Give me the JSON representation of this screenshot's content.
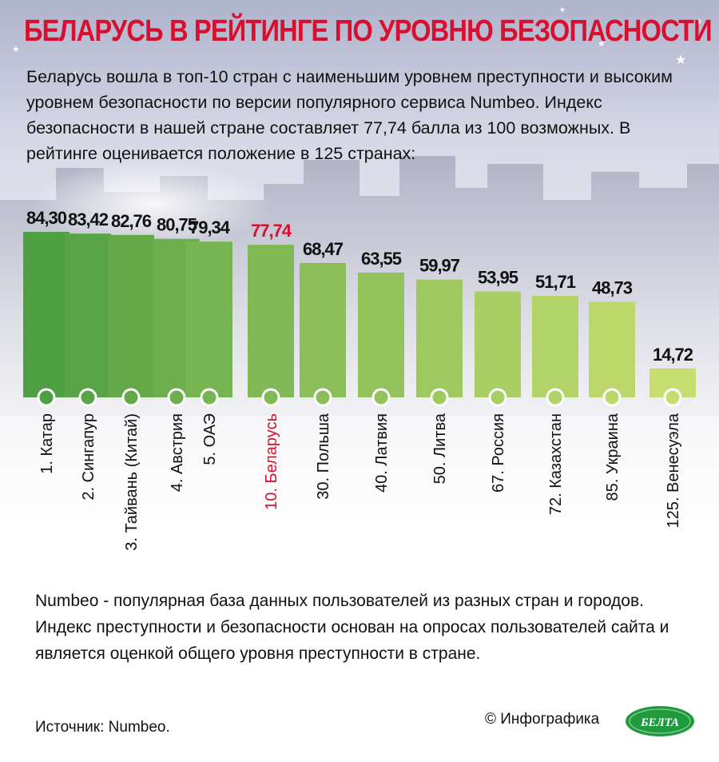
{
  "title": "БЕЛАРУСЬ В РЕЙТИНГЕ ПО УРОВНЮ БЕЗОПАСНОСТИ",
  "intro": "Беларусь вошла в топ-10 стран с наименьшим уровнем преступности и высоким уровнем безопасности по версии популярного сервиса Numbeo. Индекс безопасности в нашей стране составляет 77,74 балла из 100 возможных. В рейтинге оценивается положение в 125 странах:",
  "footnote": "Numbeo - популярная база данных пользователей из разных стран и городов. Индекс преступности и безопасности основан на опросах пользователей сайта и является оценкой общего уровня преступности в стране.",
  "source": "Источник: Numbeo.",
  "credit": "© Инфографика",
  "logo_text": "БЕЛТА",
  "colors": {
    "title": "#d8102f",
    "highlight": "#d8102f",
    "bar_dark": "#4f9f43",
    "bar_light": "#c6dd6f"
  },
  "chart_data": {
    "type": "bar",
    "ylim": [
      0,
      100
    ],
    "categories": [
      "1. Катар",
      "2. Сингапур",
      "3. Тайвань (Китай)",
      "4. Австрия",
      "5. ОАЭ",
      "10. Беларусь",
      "30. Польша",
      "40. Латвия",
      "50. Литва",
      "67. Россия",
      "72. Казахстан",
      "85. Украина",
      "125. Венесуэла"
    ],
    "values": [
      84.3,
      83.42,
      82.76,
      80.75,
      79.34,
      77.74,
      68.47,
      63.55,
      59.97,
      53.95,
      51.71,
      48.73,
      14.72
    ],
    "value_labels": [
      "84,30",
      "83,42",
      "82,76",
      "80,75",
      "79,34",
      "77,74",
      "68,47",
      "63,55",
      "59,97",
      "53,95",
      "51,71",
      "48,73",
      "14,72"
    ],
    "highlight": "10. Беларусь"
  }
}
